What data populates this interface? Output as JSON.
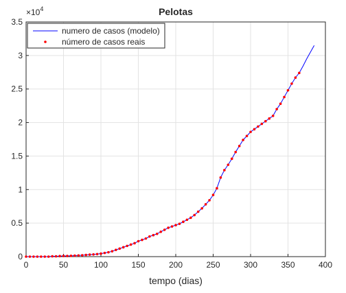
{
  "chart_data": {
    "type": "line",
    "title": "Pelotas",
    "xlabel": "tempo (dias)",
    "y_multiplier": {
      "base": "×10",
      "power": "4"
    },
    "xlim": [
      0,
      400
    ],
    "xticks": [
      0,
      50,
      100,
      150,
      200,
      250,
      300,
      350,
      400
    ],
    "ylim": [
      0,
      3.5
    ],
    "yticks": [
      0,
      0.5,
      1,
      1.5,
      2,
      2.5,
      3,
      3.5
    ],
    "grid": true,
    "legend": "upper left",
    "series": [
      {
        "name": "numero de casos (modelo)",
        "color": "#0000ff",
        "style": "line",
        "x": [
          0,
          5,
          10,
          15,
          20,
          25,
          30,
          35,
          40,
          45,
          50,
          55,
          60,
          65,
          70,
          75,
          80,
          85,
          90,
          95,
          100,
          105,
          110,
          115,
          120,
          125,
          130,
          135,
          140,
          145,
          150,
          155,
          160,
          165,
          170,
          175,
          180,
          185,
          190,
          195,
          200,
          205,
          210,
          215,
          220,
          225,
          230,
          235,
          240,
          245,
          250,
          255,
          260,
          265,
          270,
          275,
          280,
          285,
          290,
          295,
          300,
          305,
          310,
          315,
          320,
          325,
          330,
          335,
          340,
          345,
          350,
          355,
          360,
          365,
          370,
          375,
          380,
          385
        ],
        "values": [
          0,
          0,
          0,
          0,
          0,
          0,
          0,
          0.005,
          0.005,
          0.008,
          0.01,
          0.01,
          0.012,
          0.015,
          0.018,
          0.02,
          0.025,
          0.03,
          0.033,
          0.038,
          0.045,
          0.055,
          0.065,
          0.08,
          0.1,
          0.12,
          0.14,
          0.16,
          0.18,
          0.2,
          0.23,
          0.25,
          0.27,
          0.3,
          0.32,
          0.34,
          0.37,
          0.4,
          0.43,
          0.45,
          0.47,
          0.49,
          0.52,
          0.55,
          0.58,
          0.62,
          0.67,
          0.72,
          0.78,
          0.84,
          0.92,
          1.02,
          1.18,
          1.29,
          1.37,
          1.46,
          1.56,
          1.65,
          1.74,
          1.8,
          1.86,
          1.9,
          1.94,
          1.98,
          2.02,
          2.06,
          2.1,
          2.2,
          2.28,
          2.38,
          2.48,
          2.58,
          2.67,
          2.74,
          2.84,
          2.95,
          3.05,
          3.15
        ]
      },
      {
        "name": "número de casos reais",
        "color": "#ff0000",
        "style": "dots",
        "x": [
          0,
          5,
          10,
          15,
          20,
          25,
          30,
          35,
          40,
          45,
          50,
          55,
          60,
          65,
          70,
          75,
          80,
          85,
          90,
          95,
          100,
          105,
          110,
          115,
          120,
          125,
          130,
          135,
          140,
          145,
          150,
          155,
          160,
          165,
          170,
          175,
          180,
          185,
          190,
          195,
          200,
          205,
          210,
          215,
          220,
          225,
          230,
          235,
          240,
          245,
          250,
          255,
          260,
          265,
          270,
          275,
          280,
          285,
          290,
          295,
          300,
          305,
          310,
          315,
          320,
          325,
          330,
          335,
          340,
          345,
          350,
          355,
          360,
          365
        ],
        "values": [
          0,
          0,
          0,
          0,
          0,
          0,
          0,
          0.005,
          0.005,
          0.008,
          0.01,
          0.01,
          0.012,
          0.015,
          0.018,
          0.02,
          0.025,
          0.03,
          0.033,
          0.038,
          0.045,
          0.055,
          0.065,
          0.08,
          0.1,
          0.12,
          0.14,
          0.16,
          0.18,
          0.2,
          0.23,
          0.25,
          0.27,
          0.3,
          0.32,
          0.34,
          0.37,
          0.4,
          0.43,
          0.45,
          0.47,
          0.49,
          0.52,
          0.55,
          0.58,
          0.62,
          0.67,
          0.72,
          0.78,
          0.84,
          0.92,
          1.02,
          1.18,
          1.29,
          1.37,
          1.46,
          1.56,
          1.65,
          1.74,
          1.8,
          1.86,
          1.9,
          1.94,
          1.98,
          2.02,
          2.06,
          2.1,
          2.2,
          2.28,
          2.38,
          2.48,
          2.58,
          2.67,
          2.74
        ]
      }
    ]
  }
}
